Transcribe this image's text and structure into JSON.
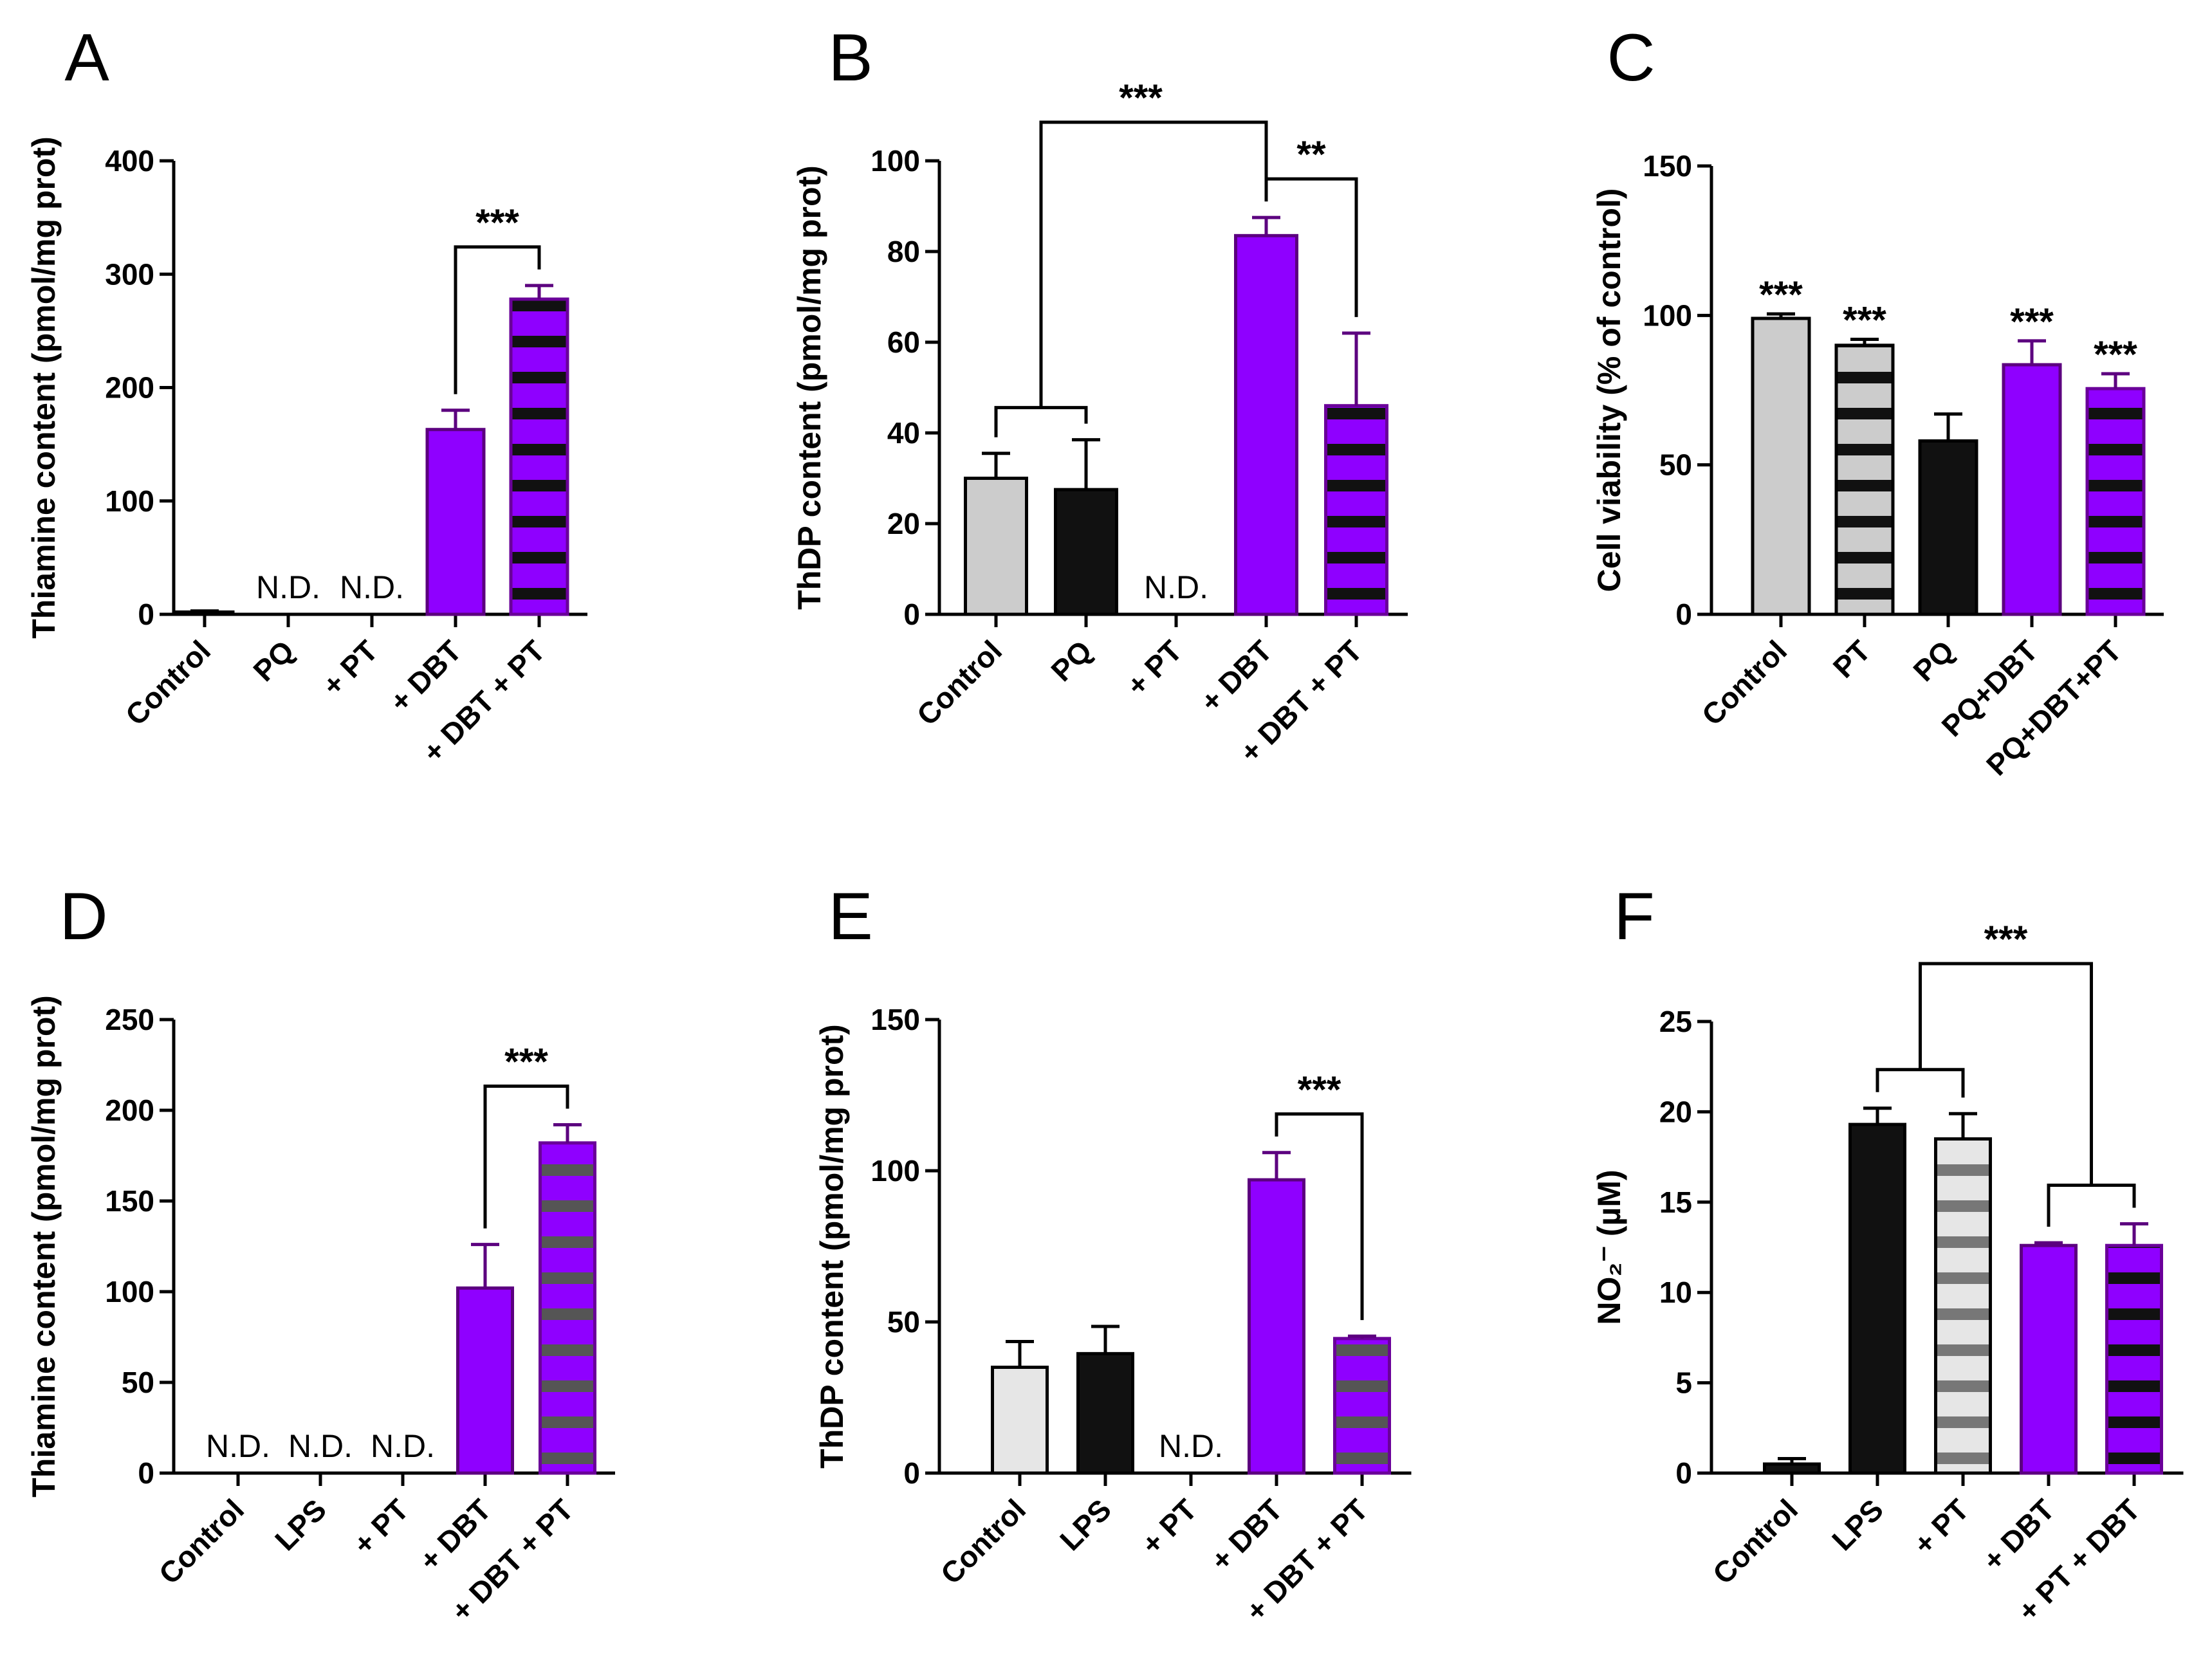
{
  "colors": {
    "purple": "#8f00ff",
    "black": "#111111",
    "light_gray": "#cccccc",
    "lighter_gray": "#e6e6e6",
    "stripe_dark_gray": "#555555",
    "stripe_gray": "#777777"
  },
  "chart_data": [
    {
      "type": "bar",
      "panel": "A",
      "ylabel": "Thiamine content (pmol/mg prot)",
      "ylim": [
        0,
        400
      ],
      "yticks": [
        "0",
        "100",
        "200",
        "300",
        "400"
      ],
      "categories": [
        "Control",
        "PQ",
        "+ PT",
        "+ DBT",
        "+ DBT + PT"
      ],
      "values": [
        2,
        null,
        null,
        163,
        278
      ],
      "errors": [
        1,
        null,
        null,
        17,
        12
      ],
      "fills": [
        "#111111",
        "none",
        "none",
        "#8f00ff",
        "#8f00ff"
      ],
      "stripes": [
        null,
        null,
        null,
        null,
        "#111111"
      ],
      "nd_labels": [
        "",
        "N.D.",
        "N.D.",
        "",
        ""
      ],
      "nd_text": "N.D.",
      "significance": [
        {
          "from": 3,
          "to": 4,
          "label": "***"
        }
      ]
    },
    {
      "type": "bar",
      "panel": "B",
      "ylabel": "ThDP content (pmol/mg prot)",
      "ylim": [
        0,
        100
      ],
      "yticks": [
        "0",
        "20",
        "40",
        "60",
        "80",
        "100"
      ],
      "categories": [
        "Control",
        "PQ",
        "+ PT",
        "+ DBT",
        "+ DBT + PT"
      ],
      "values": [
        30,
        27.5,
        null,
        83.5,
        46
      ],
      "errors": [
        5.5,
        11,
        null,
        4,
        16
      ],
      "fills": [
        "#cccccc",
        "#111111",
        "none",
        "#8f00ff",
        "#8f00ff"
      ],
      "stripes": [
        null,
        null,
        null,
        null,
        "#111111"
      ],
      "nd_labels": [
        "",
        "",
        "N.D.",
        "",
        ""
      ],
      "nd_text": "N.D.",
      "significance": [
        {
          "label": "***",
          "group": [
            0,
            1
          ],
          "to": 3
        },
        {
          "from": 3,
          "to": 4,
          "label": "**"
        }
      ]
    },
    {
      "type": "bar",
      "panel": "C",
      "ylabel": "Cell viability (% of control)",
      "ylim": [
        0,
        150
      ],
      "yticks": [
        "0",
        "50",
        "100",
        "150"
      ],
      "categories": [
        "Control",
        "PT",
        "PQ",
        "PQ+DBT",
        "PQ+DBT+PT"
      ],
      "values": [
        99,
        90,
        58,
        83.5,
        75.5
      ],
      "errors": [
        1.5,
        2,
        9,
        8,
        5
      ],
      "fills": [
        "#cccccc",
        "#cccccc",
        "#111111",
        "#8f00ff",
        "#8f00ff"
      ],
      "stripes": [
        null,
        "#111111",
        null,
        null,
        "#111111"
      ],
      "bar_labels": [
        "***",
        "***",
        "",
        "***",
        "***"
      ]
    },
    {
      "type": "bar",
      "panel": "D",
      "ylabel": "Thiamine content (pmol/mg prot)",
      "ylim": [
        0,
        250
      ],
      "yticks": [
        "0",
        "50",
        "100",
        "150",
        "200",
        "250"
      ],
      "categories": [
        "Control",
        "LPS",
        "+ PT",
        "+ DBT",
        "+ DBT + PT"
      ],
      "values": [
        null,
        null,
        null,
        102,
        182
      ],
      "errors": [
        null,
        null,
        null,
        24,
        10
      ],
      "fills": [
        "none",
        "none",
        "none",
        "#8f00ff",
        "#8f00ff"
      ],
      "stripes": [
        null,
        null,
        null,
        null,
        "#555555"
      ],
      "nd_labels": [
        "N.D.",
        "N.D.",
        "N.D.",
        "",
        ""
      ],
      "nd_text": "N.D.",
      "significance": [
        {
          "from": 3,
          "to": 4,
          "label": "***"
        }
      ]
    },
    {
      "type": "bar",
      "panel": "E",
      "ylabel": "ThDP content (pmol/mg prot)",
      "ylim": [
        0,
        150
      ],
      "yticks": [
        "0",
        "50",
        "100",
        "150"
      ],
      "categories": [
        "Control",
        "LPS",
        "+ PT",
        "+ DBT",
        "+ DBT + PT"
      ],
      "values": [
        35,
        39.5,
        null,
        97,
        44.5
      ],
      "errors": [
        8.5,
        9,
        null,
        9,
        0.8
      ],
      "fills": [
        "#e6e6e6",
        "#111111",
        "none",
        "#8f00ff",
        "#8f00ff"
      ],
      "stripes": [
        null,
        null,
        null,
        null,
        "#555555"
      ],
      "nd_labels": [
        "",
        "",
        "N.D.",
        "",
        ""
      ],
      "nd_text": "N.D.",
      "significance": [
        {
          "from": 3,
          "to": 4,
          "label": "***"
        }
      ]
    },
    {
      "type": "bar",
      "panel": "F",
      "ylabel": "NO₂⁻ (µM)",
      "ylim": [
        0,
        25
      ],
      "yticks": [
        "0",
        "5",
        "10",
        "15",
        "20",
        "25"
      ],
      "categories": [
        "Control",
        "LPS",
        "+ PT",
        "+ DBT",
        "+ PT + DBT"
      ],
      "values": [
        0.5,
        19.3,
        18.5,
        12.6,
        12.6
      ],
      "errors": [
        0.3,
        0.9,
        1.4,
        0.15,
        1.2
      ],
      "fills": [
        "#111111",
        "#111111",
        "#e6e6e6",
        "#8f00ff",
        "#8f00ff"
      ],
      "stripes": [
        null,
        null,
        "#777777",
        null,
        "#111111"
      ],
      "significance": [
        {
          "label": "***",
          "group": [
            1,
            2
          ],
          "group2": [
            3,
            4
          ]
        }
      ]
    }
  ]
}
